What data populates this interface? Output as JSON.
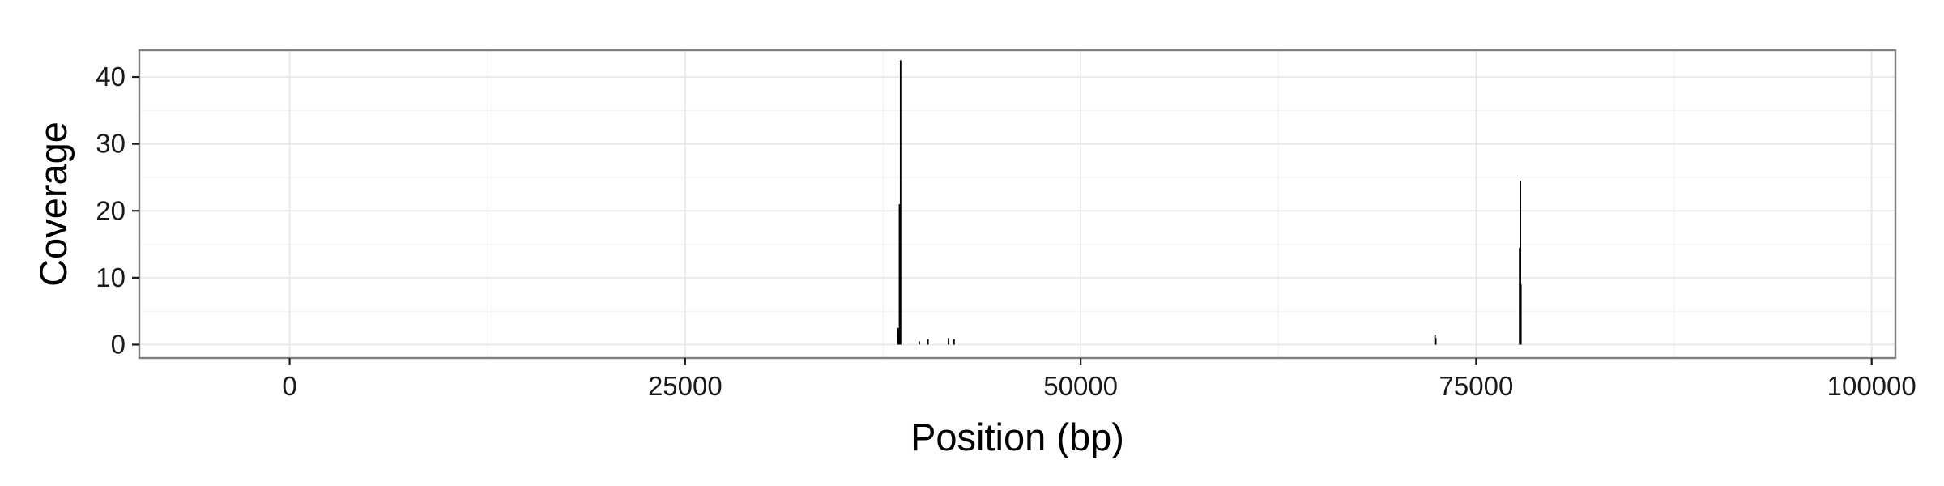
{
  "chart_data": {
    "type": "bar",
    "title": "",
    "xlabel": "Position (bp)",
    "ylabel": "Coverage",
    "xlim": [
      -9500,
      101500
    ],
    "ylim": [
      -2,
      44
    ],
    "grid": true,
    "legend": "none",
    "x_ticks": [
      0,
      25000,
      50000,
      75000,
      100000
    ],
    "x_tick_labels": [
      "0",
      "25000",
      "50000",
      "75000",
      "100000"
    ],
    "x_minor_ticks": [
      12500,
      37500,
      62500,
      87500
    ],
    "y_ticks": [
      0,
      10,
      20,
      30,
      40
    ],
    "y_tick_labels": [
      "0",
      "10",
      "20",
      "30",
      "40"
    ],
    "y_minor_ticks": [
      5,
      15,
      25,
      35
    ],
    "series": [
      {
        "name": "Coverage",
        "x": [
          38450,
          38480,
          38550,
          38620,
          39800,
          40350,
          41650,
          42000,
          72400,
          72450,
          77750,
          77780,
          77800,
          77830
        ],
        "values": [
          2.5,
          2,
          21,
          42.5,
          0.5,
          0.8,
          1,
          0.8,
          1.5,
          1,
          14.5,
          10,
          24.5,
          9
        ]
      }
    ]
  }
}
